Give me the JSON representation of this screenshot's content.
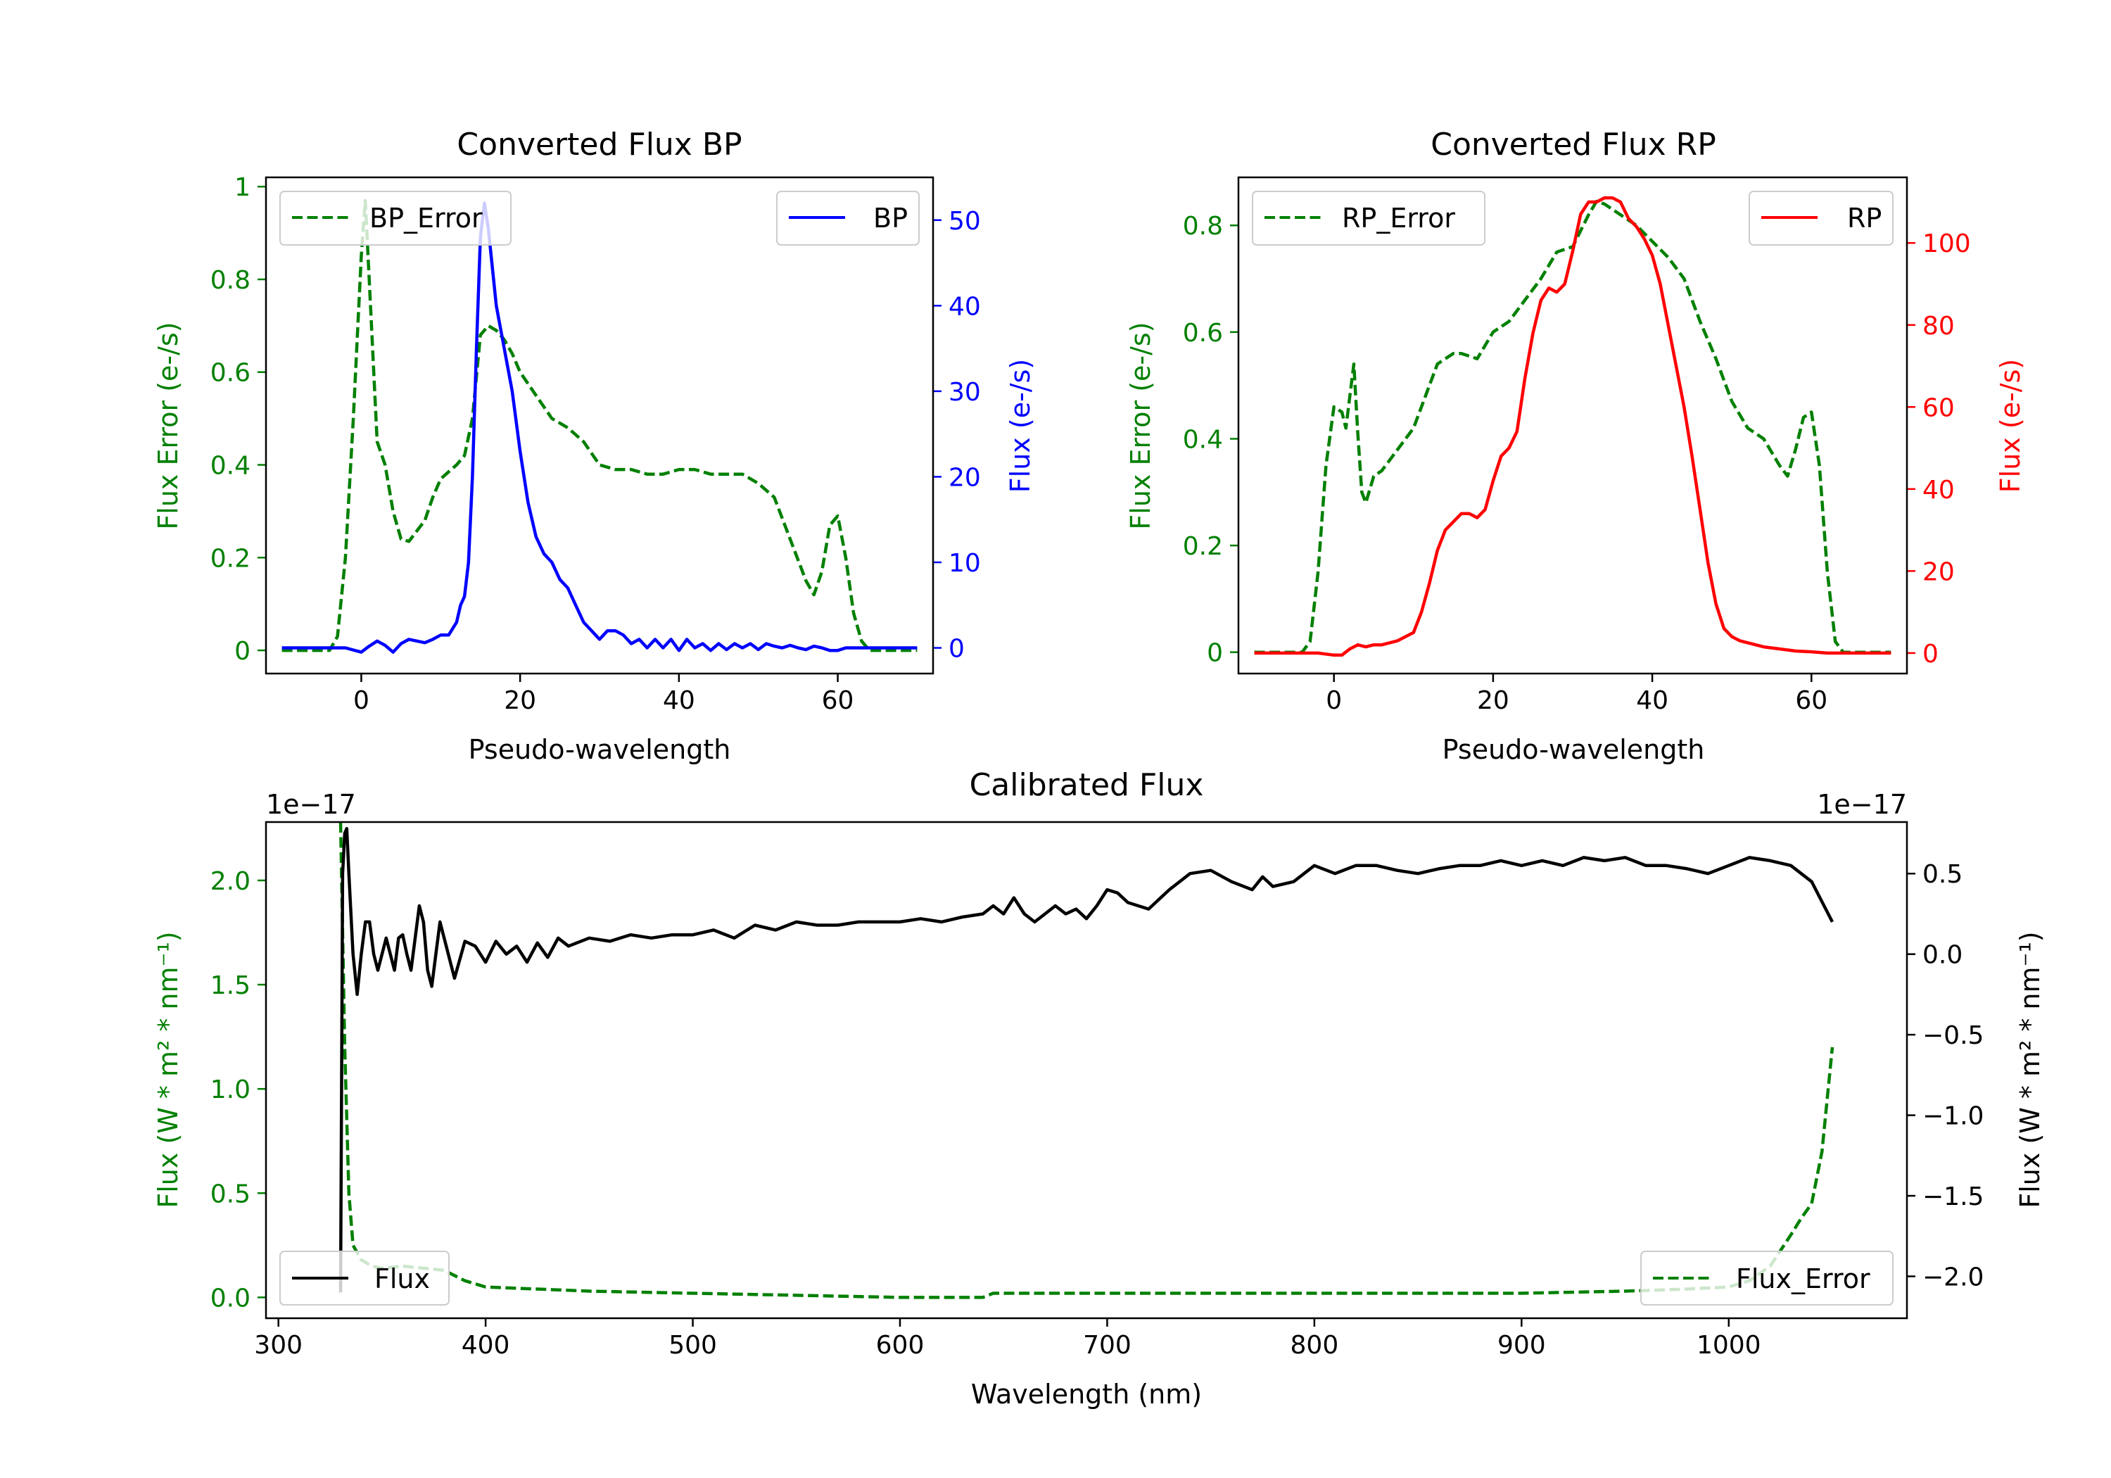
{
  "chart_data": [
    {
      "type": "line",
      "title": "Converted Flux BP",
      "xlabel": "Pseudo-wavelength",
      "ylabel_left": "Flux Error (e-/s)",
      "ylabel_right": "Flux (e-/s)",
      "xlim": [
        -12,
        72
      ],
      "ylim_left": [
        -0.05,
        1.02
      ],
      "ylim_right": [
        -3,
        55
      ],
      "xticks": [
        0,
        20,
        40,
        60
      ],
      "yticks_left": [
        0.0,
        0.2,
        0.4,
        0.6,
        0.8,
        1.0
      ],
      "yticks_right": [
        0,
        10,
        20,
        30,
        40,
        50
      ],
      "legend_left": {
        "label": "BP_Error",
        "position": "top-left"
      },
      "legend_right": {
        "label": "BP",
        "position": "top-right"
      },
      "colors": {
        "error": "#008000",
        "flux": "#0000ff",
        "left_axis": "#008000",
        "right_axis": "#0000ff"
      },
      "series": [
        {
          "name": "BP_Error",
          "axis": "left",
          "style": "dashed",
          "x": [
            -10,
            -4,
            -3,
            -2,
            -1,
            0,
            0.5,
            1,
            2,
            3,
            4,
            5,
            6,
            8,
            9,
            10,
            12,
            13,
            14,
            15,
            16,
            17,
            18,
            19,
            20,
            22,
            24,
            26,
            28,
            30,
            32,
            34,
            36,
            38,
            40,
            42,
            44,
            46,
            48,
            50,
            52,
            54,
            56,
            57,
            58,
            59,
            60,
            61,
            62,
            63,
            64,
            65,
            70
          ],
          "values": [
            0.0,
            0.0,
            0.03,
            0.2,
            0.5,
            0.85,
            0.97,
            0.8,
            0.45,
            0.4,
            0.3,
            0.24,
            0.235,
            0.28,
            0.33,
            0.37,
            0.4,
            0.42,
            0.5,
            0.68,
            0.7,
            0.69,
            0.67,
            0.64,
            0.6,
            0.55,
            0.5,
            0.48,
            0.45,
            0.4,
            0.39,
            0.39,
            0.38,
            0.38,
            0.39,
            0.39,
            0.38,
            0.38,
            0.38,
            0.36,
            0.33,
            0.24,
            0.15,
            0.12,
            0.17,
            0.27,
            0.29,
            0.2,
            0.08,
            0.02,
            0.0,
            0.0,
            0.0
          ]
        },
        {
          "name": "BP",
          "axis": "right",
          "style": "solid",
          "x": [
            -10,
            -2,
            0,
            1,
            2,
            3,
            4,
            5,
            6,
            8,
            9,
            10,
            11,
            12,
            12.5,
            13,
            13.5,
            14,
            14.5,
            15,
            15.5,
            16,
            17,
            18,
            19,
            20,
            21,
            22,
            23,
            24,
            25,
            26,
            27,
            28,
            29,
            30,
            31,
            32,
            33,
            34,
            35,
            36,
            37,
            38,
            39,
            40,
            41,
            42,
            43,
            44,
            45,
            46,
            47,
            48,
            49,
            50,
            51,
            52,
            53,
            54,
            55,
            56,
            57,
            58,
            59,
            60,
            61,
            62,
            63,
            64,
            65,
            70
          ],
          "values": [
            0,
            0,
            -0.5,
            0.2,
            0.8,
            0.3,
            -0.5,
            0.5,
            1.0,
            0.6,
            1.0,
            1.5,
            1.5,
            3.0,
            5,
            6,
            10,
            20,
            35,
            48,
            52,
            49,
            40,
            35,
            30,
            23,
            17,
            13,
            11,
            10,
            8,
            7,
            5,
            3,
            2,
            1,
            2,
            2,
            1.5,
            0.5,
            1,
            0,
            1,
            0,
            1,
            -0.3,
            1,
            0,
            0.5,
            -0.3,
            0.5,
            -0.2,
            0.5,
            0,
            0.5,
            -0.2,
            0.5,
            0.2,
            0,
            0.3,
            0,
            -0.2,
            0.2,
            0,
            -0.3,
            -0.3,
            0,
            0,
            0,
            0,
            0,
            0
          ]
        }
      ]
    },
    {
      "type": "line",
      "title": "Converted Flux RP",
      "xlabel": "Pseudo-wavelength",
      "ylabel_left": "Flux Error (e-/s)",
      "ylabel_right": "Flux (e-/s)",
      "xlim": [
        -12,
        72
      ],
      "ylim_left": [
        -0.04,
        0.89
      ],
      "ylim_right": [
        -5,
        116
      ],
      "xticks": [
        0,
        20,
        40,
        60
      ],
      "yticks_left": [
        0.0,
        0.2,
        0.4,
        0.6,
        0.8
      ],
      "yticks_right": [
        0,
        20,
        40,
        60,
        80,
        100
      ],
      "legend_left": {
        "label": "RP_Error",
        "position": "top-left"
      },
      "legend_right": {
        "label": "RP",
        "position": "top-right"
      },
      "colors": {
        "error": "#008000",
        "flux": "#ff0000",
        "left_axis": "#008000",
        "right_axis": "#ff0000"
      },
      "series": [
        {
          "name": "RP_Error",
          "axis": "left",
          "style": "dashed",
          "x": [
            -10,
            -4,
            -3,
            -2,
            -1,
            0,
            1,
            1.5,
            2,
            2.5,
            3,
            3.5,
            4,
            5,
            6,
            7,
            8,
            9,
            10,
            11,
            12,
            13,
            14,
            15,
            16,
            18,
            20,
            22,
            24,
            26,
            28,
            30,
            32,
            33,
            34,
            36,
            38,
            40,
            42,
            44,
            46,
            48,
            50,
            52,
            54,
            56,
            57,
            58,
            59,
            60,
            61,
            62,
            63,
            64,
            70
          ],
          "values": [
            0.0,
            0.0,
            0.02,
            0.15,
            0.35,
            0.46,
            0.45,
            0.42,
            0.48,
            0.54,
            0.41,
            0.3,
            0.28,
            0.33,
            0.34,
            0.36,
            0.38,
            0.4,
            0.42,
            0.46,
            0.5,
            0.54,
            0.55,
            0.56,
            0.56,
            0.55,
            0.6,
            0.62,
            0.66,
            0.7,
            0.75,
            0.76,
            0.82,
            0.845,
            0.84,
            0.82,
            0.8,
            0.77,
            0.74,
            0.7,
            0.62,
            0.55,
            0.47,
            0.42,
            0.4,
            0.35,
            0.33,
            0.38,
            0.44,
            0.45,
            0.35,
            0.15,
            0.02,
            0.0,
            0.0
          ]
        },
        {
          "name": "RP",
          "axis": "right",
          "style": "solid",
          "x": [
            -10,
            -2,
            0,
            1,
            2,
            3,
            4,
            5,
            6,
            8,
            10,
            11,
            12,
            13,
            14,
            15,
            16,
            17,
            18,
            19,
            20,
            21,
            22,
            23,
            24,
            25,
            26,
            27,
            28,
            29,
            30,
            31,
            32,
            33,
            34,
            35,
            36,
            37,
            38,
            39,
            40,
            41,
            42,
            43,
            44,
            45,
            46,
            47,
            48,
            49,
            50,
            51,
            52,
            54,
            56,
            58,
            60,
            62,
            65,
            70
          ],
          "values": [
            0,
            0,
            -0.5,
            -0.5,
            1,
            2,
            1.5,
            2,
            2,
            3,
            5,
            10,
            17,
            25,
            30,
            32,
            34,
            34,
            33,
            35,
            42,
            48,
            50,
            54,
            67,
            78,
            86,
            89,
            88,
            90,
            98,
            107,
            110,
            110,
            111,
            111,
            110,
            106,
            104,
            101,
            97,
            90,
            80,
            70,
            60,
            48,
            35,
            22,
            12,
            6,
            4,
            3,
            2.5,
            1.5,
            1,
            0.5,
            0.3,
            0,
            0,
            0
          ]
        }
      ]
    },
    {
      "type": "line",
      "title": "Calibrated Flux",
      "xlabel": "Wavelength (nm)",
      "ylabel_left": "Flux (W * m² * nm⁻¹)",
      "ylabel_right": "Flux (W * m² * nm⁻¹)",
      "offset_left": "1e−17",
      "offset_right": "1e−17",
      "xlim": [
        294,
        1086
      ],
      "ylim_left": [
        -0.1,
        2.28
      ],
      "ylim_right": [
        -2.26,
        0.82
      ],
      "xticks": [
        300,
        400,
        500,
        600,
        700,
        800,
        900,
        1000
      ],
      "yticks_left": [
        0.0,
        0.5,
        1.0,
        1.5,
        2.0
      ],
      "yticks_left_labels": [
        "0.0",
        "0.5",
        "1.0",
        "1.5",
        "2.0"
      ],
      "yticks_right": [
        -2.0,
        -1.5,
        -1.0,
        -0.5,
        0.0,
        0.5
      ],
      "yticks_right_labels": [
        "−2.0",
        "−1.5",
        "−1.0",
        "−0.5",
        "0.0",
        "0.5"
      ],
      "legend_left": {
        "label": "Flux",
        "position": "lower-left"
      },
      "legend_right": {
        "label": "Flux_Error",
        "position": "lower-right"
      },
      "colors": {
        "error": "#008000",
        "flux": "#000000",
        "left_axis": "#008000",
        "right_axis": "#000000"
      },
      "series": [
        {
          "name": "Flux_Error",
          "axis": "left",
          "style": "dashed",
          "x": [
            330,
            332,
            334,
            336,
            340,
            345,
            350,
            360,
            370,
            380,
            390,
            400,
            450,
            500,
            550,
            600,
            640,
            645,
            700,
            800,
            900,
            950,
            980,
            1000,
            1010,
            1020,
            1030,
            1035,
            1040,
            1045,
            1048,
            1050
          ],
          "values": [
            2.28,
            1.2,
            0.5,
            0.25,
            0.18,
            0.15,
            0.14,
            0.15,
            0.14,
            0.13,
            0.08,
            0.05,
            0.03,
            0.02,
            0.01,
            0.0,
            0.0,
            0.02,
            0.02,
            0.02,
            0.02,
            0.03,
            0.04,
            0.05,
            0.08,
            0.15,
            0.3,
            0.38,
            0.45,
            0.7,
            1.0,
            1.2
          ]
        },
        {
          "name": "Flux",
          "axis": "right",
          "style": "solid",
          "x": [
            330,
            331,
            332,
            333,
            334,
            336,
            338,
            340,
            342,
            344,
            346,
            348,
            350,
            352,
            354,
            356,
            358,
            360,
            362,
            364,
            366,
            368,
            370,
            372,
            374,
            376,
            378,
            380,
            385,
            390,
            395,
            400,
            405,
            410,
            415,
            420,
            425,
            430,
            435,
            440,
            450,
            460,
            470,
            480,
            490,
            500,
            510,
            520,
            530,
            540,
            550,
            560,
            570,
            580,
            590,
            600,
            610,
            620,
            630,
            640,
            645,
            650,
            655,
            660,
            665,
            670,
            675,
            680,
            685,
            690,
            695,
            700,
            705,
            710,
            715,
            720,
            730,
            740,
            750,
            760,
            770,
            775,
            780,
            790,
            800,
            810,
            820,
            830,
            840,
            850,
            860,
            870,
            880,
            890,
            900,
            910,
            920,
            930,
            940,
            950,
            960,
            970,
            980,
            990,
            1000,
            1010,
            1020,
            1030,
            1040,
            1050
          ],
          "values": [
            -2.1,
            0.5,
            0.75,
            0.78,
            0.5,
            0.0,
            -0.25,
            0.0,
            0.2,
            0.2,
            0.0,
            -0.1,
            0.0,
            0.1,
            0.0,
            -0.1,
            0.1,
            0.12,
            0.0,
            -0.1,
            0.1,
            0.3,
            0.2,
            -0.1,
            -0.2,
            0.0,
            0.2,
            0.1,
            -0.15,
            0.08,
            0.05,
            -0.05,
            0.08,
            0.0,
            0.05,
            -0.05,
            0.07,
            -0.02,
            0.1,
            0.05,
            0.1,
            0.08,
            0.12,
            0.1,
            0.12,
            0.12,
            0.15,
            0.1,
            0.18,
            0.15,
            0.2,
            0.18,
            0.18,
            0.2,
            0.2,
            0.2,
            0.22,
            0.2,
            0.23,
            0.25,
            0.3,
            0.25,
            0.35,
            0.25,
            0.2,
            0.25,
            0.3,
            0.25,
            0.28,
            0.22,
            0.3,
            0.4,
            0.38,
            0.32,
            0.3,
            0.28,
            0.4,
            0.5,
            0.52,
            0.45,
            0.4,
            0.48,
            0.42,
            0.45,
            0.55,
            0.5,
            0.55,
            0.55,
            0.52,
            0.5,
            0.53,
            0.55,
            0.55,
            0.58,
            0.55,
            0.58,
            0.55,
            0.6,
            0.58,
            0.6,
            0.55,
            0.55,
            0.53,
            0.5,
            0.55,
            0.6,
            0.58,
            0.55,
            0.45,
            0.2
          ]
        }
      ]
    }
  ]
}
